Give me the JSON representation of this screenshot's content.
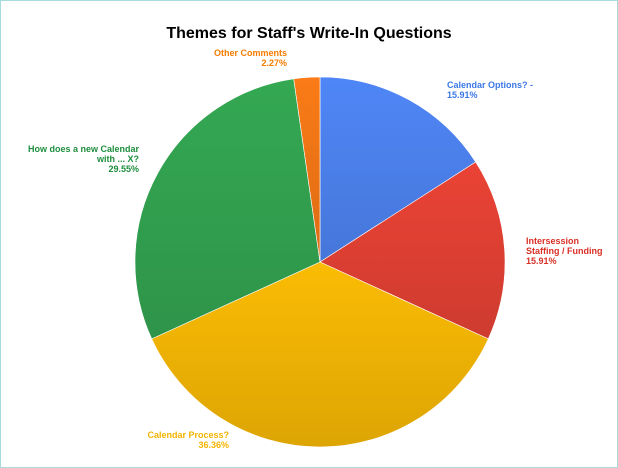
{
  "chart_data": {
    "type": "pie",
    "title": "Themes for Staff's Write-In Questions",
    "slices": [
      {
        "label": "Calendar Options? -",
        "value": 15.91,
        "pct_label": "15.91%",
        "color": "#4f86f7"
      },
      {
        "label": "Intersession Staffing / Funding",
        "value": 15.91,
        "pct_label": "15.91%",
        "color": "#ea4335"
      },
      {
        "label": "Calendar Process?",
        "value": 36.36,
        "pct_label": "36.36%",
        "color": "#fbbc04"
      },
      {
        "label": "How does a new Calendar with ... X?",
        "value": 29.55,
        "pct_label": "29.55%",
        "color": "#34a853"
      },
      {
        "label": "Other Comments",
        "value": 2.27,
        "pct_label": "2.27%",
        "color": "#fa7b17"
      }
    ],
    "legend": "none",
    "start_angle": "12 o'clock",
    "direction": "clockwise"
  }
}
